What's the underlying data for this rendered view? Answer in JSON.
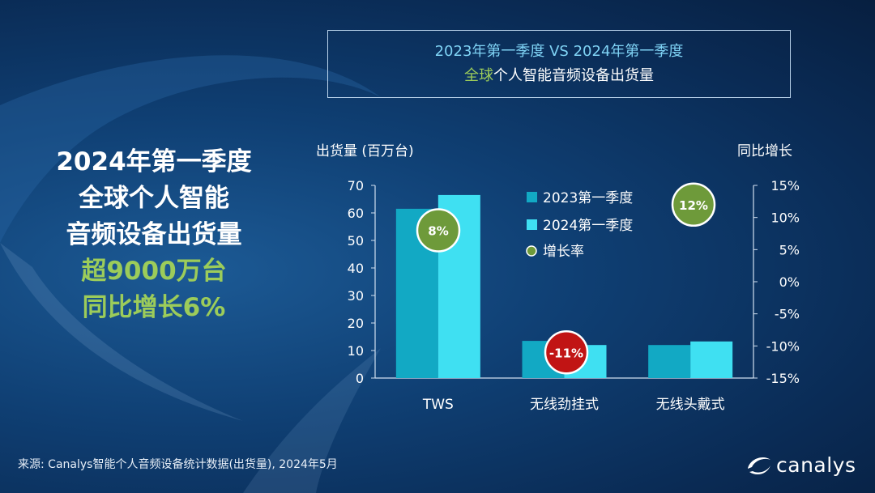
{
  "title": {
    "line1": "2023年第一季度 VS 2024年第一季度",
    "line2_highlight": "全球",
    "line2_rest": "个人智能音频设备出货量"
  },
  "headline": {
    "line1": "2024年第一季度",
    "line2": "全球个人智能",
    "line3": "音频设备出货量",
    "line4": "超9000万台",
    "line5": "同比增长6%"
  },
  "footer": {
    "source": "来源: Canalys智能个人音频设备统计数据(出货量), 2024年5月",
    "logo": "canalys"
  },
  "chart_data": {
    "type": "bar",
    "ylabel": "出货量 (百万台)",
    "y2label": "同比增长",
    "categories": [
      "TWS",
      "无线劲挂式",
      "无线头戴式"
    ],
    "ylim": [
      0,
      70
    ],
    "yticks": [
      "0",
      "10",
      "20",
      "30",
      "40",
      "50",
      "60",
      "70"
    ],
    "y2lim": [
      -15,
      15
    ],
    "y2ticks": [
      "-15%",
      "-10%",
      "-5%",
      "0%",
      "5%",
      "10%",
      "15%"
    ],
    "series": [
      {
        "name": "2023第一季度",
        "values": [
          61.5,
          13.5,
          12.0
        ],
        "color": "#12a9c4"
      },
      {
        "name": "2024第一季度",
        "values": [
          66.5,
          12.0,
          13.3
        ],
        "color": "#3fe0f2"
      }
    ],
    "growth": {
      "name": "增长率",
      "values": [
        8,
        -11,
        12
      ],
      "labels": [
        "8%",
        "-11%",
        "12%"
      ],
      "colors": [
        "#6e9a3a",
        "#c11414",
        "#6e9a3a"
      ]
    },
    "legend_position": "top-right",
    "grid": false
  }
}
